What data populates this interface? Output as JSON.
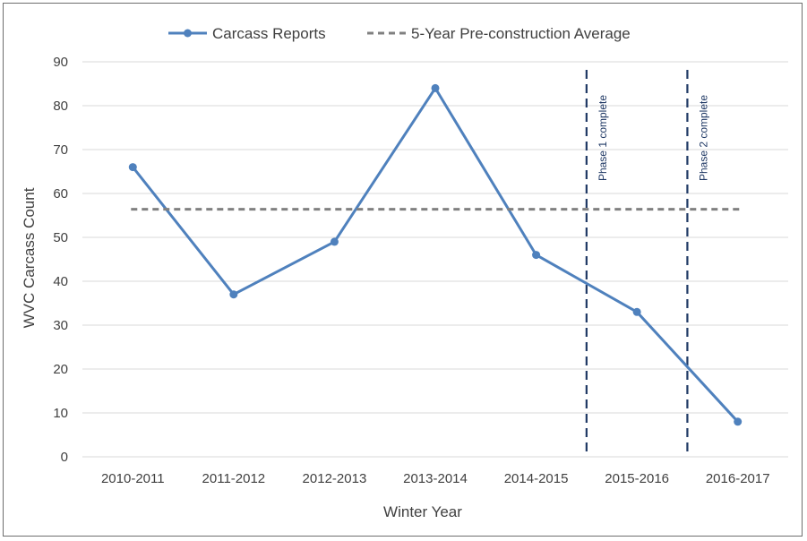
{
  "chart_data": {
    "type": "line",
    "categories": [
      "2010-2011",
      "2011-2012",
      "2012-2013",
      "2013-2014",
      "2014-2015",
      "2015-2016",
      "2016-2017"
    ],
    "series": [
      {
        "name": "Carcass Reports",
        "values": [
          66,
          37,
          49,
          84,
          46,
          33,
          8
        ],
        "color": "#4f81bd",
        "style": "solid-markers"
      },
      {
        "name": "5-Year Pre-construction Average",
        "values": [
          56.4,
          56.4,
          56.4,
          56.4,
          56.4,
          56.4,
          56.4
        ],
        "color": "#808080",
        "style": "dashed"
      }
    ],
    "xlabel": "Winter Year",
    "ylabel": "WVC Carcass Count",
    "ylim": [
      0,
      90
    ],
    "yticks": [
      "0",
      "10",
      "20",
      "30",
      "40",
      "50",
      "60",
      "70",
      "80",
      "90"
    ],
    "grid": "horizontal",
    "legend_position": "top",
    "annotations": [
      {
        "text": "Phase 1 complete",
        "after_category": "2014-2015",
        "color": "#1f3864",
        "style": "dashed-vertical"
      },
      {
        "text": "Phase 2 complete",
        "after_category": "2015-2016",
        "color": "#1f3864",
        "style": "dashed-vertical"
      }
    ]
  }
}
